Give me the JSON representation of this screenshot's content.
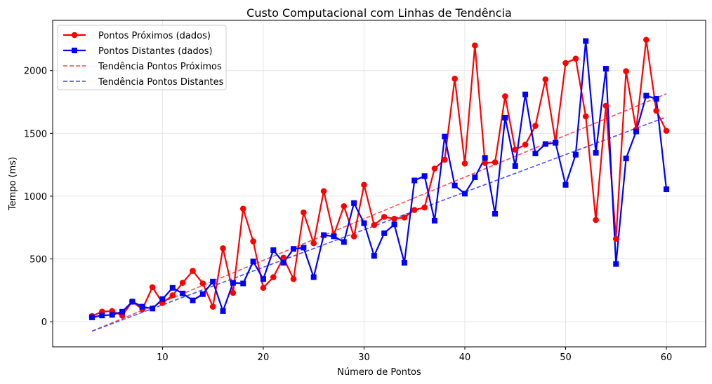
{
  "chart_data": {
    "type": "line",
    "title": "Custo Computacional com Linhas de Tendência",
    "xlabel": "Número de Pontos",
    "ylabel": "Tempo (ms)",
    "xlim": [
      -0.9,
      63.9
    ],
    "ylim": [
      -200,
      2400
    ],
    "xticks": [
      10,
      20,
      30,
      40,
      50,
      60
    ],
    "yticks": [
      0,
      500,
      1000,
      1500,
      2000
    ],
    "grid": true,
    "legend_position": "top-left",
    "x": [
      3,
      4,
      5,
      6,
      7,
      8,
      9,
      10,
      11,
      12,
      13,
      14,
      15,
      16,
      17,
      18,
      19,
      20,
      21,
      22,
      23,
      24,
      25,
      26,
      27,
      28,
      29,
      30,
      31,
      32,
      33,
      34,
      35,
      36,
      37,
      38,
      39,
      40,
      41,
      42,
      43,
      44,
      45,
      46,
      47,
      48,
      49,
      50,
      51,
      52,
      53,
      54,
      55,
      56,
      57,
      58,
      59,
      60
    ],
    "series": [
      {
        "name": "Pontos Próximos (dados)",
        "color": "#ff0000",
        "marker": "circle",
        "values": [
          45,
          80,
          85,
          50,
          160,
          100,
          275,
          150,
          210,
          310,
          405,
          305,
          120,
          585,
          230,
          900,
          640,
          270,
          355,
          510,
          340,
          870,
          625,
          1040,
          690,
          920,
          680,
          1090,
          770,
          835,
          820,
          830,
          890,
          910,
          1220,
          1290,
          1935,
          1260,
          2200,
          1265,
          1270,
          1795,
          1370,
          1410,
          1560,
          1930,
          1430,
          2060,
          2095,
          1635,
          810,
          1720,
          660,
          1995,
          1530,
          2245,
          1680,
          1520
        ]
      },
      {
        "name": "Pontos Distantes (dados)",
        "color": "#0000ff",
        "marker": "square",
        "values": [
          35,
          50,
          55,
          80,
          160,
          120,
          105,
          180,
          270,
          225,
          170,
          220,
          320,
          85,
          310,
          305,
          480,
          340,
          570,
          470,
          580,
          590,
          355,
          690,
          680,
          635,
          945,
          785,
          525,
          705,
          775,
          470,
          1125,
          1160,
          805,
          1475,
          1085,
          1020,
          1150,
          1305,
          860,
          1625,
          1240,
          1810,
          1340,
          1415,
          1425,
          1090,
          1330,
          2235,
          1345,
          2015,
          460,
          1300,
          1515,
          1800,
          1775,
          1055
        ]
      }
    ],
    "trendlines": [
      {
        "name": "Tendência Pontos Próximos",
        "color": "#ff4444",
        "x": [
          3,
          60
        ],
        "values": [
          -75,
          1815
        ]
      },
      {
        "name": "Tendência Pontos Distantes",
        "color": "#4444ff",
        "x": [
          3,
          60
        ],
        "values": [
          -75,
          1630
        ]
      }
    ]
  }
}
